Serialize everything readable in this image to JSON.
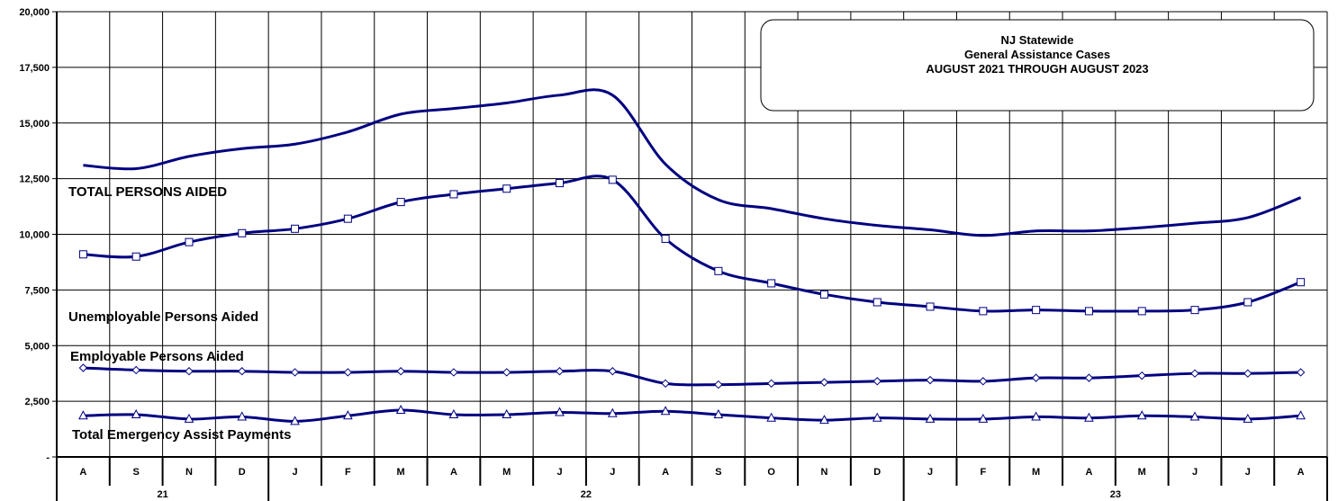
{
  "chart_data": {
    "type": "line",
    "title": [
      "NJ Statewide",
      "General Assistance Cases",
      "AUGUST 2021 THROUGH AUGUST 2023"
    ],
    "ylim": [
      0,
      20000
    ],
    "y_ticks": [
      {
        "value": 0,
        "label": "-"
      },
      {
        "value": 2500,
        "label": "2,500"
      },
      {
        "value": 5000,
        "label": "5,000"
      },
      {
        "value": 7500,
        "label": "7,500"
      },
      {
        "value": 10000,
        "label": "10,000"
      },
      {
        "value": 12500,
        "label": "12,500"
      },
      {
        "value": 15000,
        "label": "15,000"
      },
      {
        "value": 17500,
        "label": "17,500"
      },
      {
        "value": 20000,
        "label": "20,000"
      }
    ],
    "categories": [
      "A",
      "S",
      "N",
      "D",
      "J",
      "F",
      "M",
      "A",
      "M",
      "J",
      "J",
      "A",
      "S",
      "O",
      "N",
      "D",
      "J",
      "F",
      "M",
      "A",
      "M",
      "J",
      "J",
      "A"
    ],
    "year_groups": [
      {
        "label": "21",
        "start": 0,
        "end": 3
      },
      {
        "label": "22",
        "start": 4,
        "end": 15
      },
      {
        "label": "23",
        "start": 16,
        "end": 23
      }
    ],
    "grid": true,
    "series": [
      {
        "name": "TOTAL PERSONS AIDED",
        "marker": "none",
        "values": [
          13100,
          12950,
          13500,
          13850,
          14050,
          14600,
          15400,
          15650,
          15900,
          16250,
          16250,
          13150,
          11550,
          11150,
          10700,
          10400,
          10200,
          9950,
          10150,
          10150,
          10300,
          10500,
          10750,
          11650
        ]
      },
      {
        "name": "Unemployable Persons Aided",
        "marker": "square",
        "values": [
          9100,
          9000,
          9650,
          10050,
          10250,
          10700,
          11450,
          11800,
          12050,
          12300,
          12450,
          9800,
          8350,
          7800,
          7300,
          6950,
          6750,
          6550,
          6600,
          6550,
          6550,
          6600,
          6950,
          7850
        ]
      },
      {
        "name": "Employable Persons Aided",
        "marker": "diamond",
        "values": [
          4000,
          3900,
          3850,
          3850,
          3800,
          3800,
          3850,
          3800,
          3800,
          3850,
          3850,
          3300,
          3250,
          3300,
          3350,
          3400,
          3450,
          3400,
          3550,
          3550,
          3650,
          3750,
          3750,
          3800
        ]
      },
      {
        "name": "Total Emergency Assist Payments",
        "marker": "triangle",
        "values": [
          1850,
          1900,
          1700,
          1800,
          1600,
          1850,
          2100,
          1900,
          1900,
          2000,
          1950,
          2050,
          1900,
          1750,
          1650,
          1750,
          1700,
          1700,
          1800,
          1750,
          1850,
          1800,
          1700,
          1850
        ]
      }
    ],
    "line_color": "#000080"
  }
}
